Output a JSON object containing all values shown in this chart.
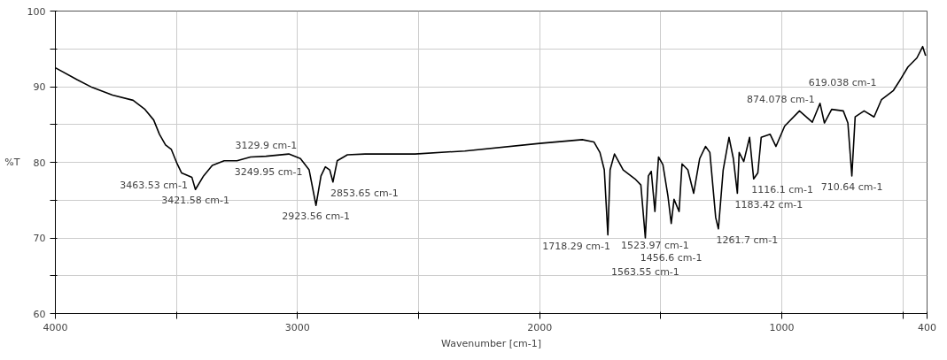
{
  "chart_data": {
    "type": "line",
    "xlabel": "Wavenumber [cm-1]",
    "ylabel": "%T",
    "color": "#000000",
    "grid": true,
    "xlim": [
      4000,
      400
    ],
    "ylim": [
      60,
      100
    ],
    "xticks": [
      4000,
      {
        "value": 3500,
        "label": null
      },
      3000,
      {
        "value": 2500,
        "label": null
      },
      2000,
      {
        "value": 1500,
        "label": null
      },
      1000,
      {
        "value": 500,
        "label": null
      },
      400
    ],
    "yticks": [
      60,
      {
        "value": 65,
        "label": null
      },
      70,
      {
        "value": 75,
        "label": null
      },
      80,
      {
        "value": 85,
        "label": null
      },
      90,
      {
        "value": 95,
        "label": null
      },
      100
    ],
    "x": [
      4000,
      3909,
      3848,
      3764,
      3679,
      3630,
      3594,
      3570,
      3545,
      3521,
      3497,
      3479,
      3463.53,
      3436,
      3421.58,
      3388,
      3352,
      3303,
      3249.95,
      3194,
      3129.9,
      3036,
      2988,
      2952,
      2923.56,
      2903,
      2885,
      2867,
      2853.65,
      2836,
      2794,
      2721,
      2515,
      2309,
      2000,
      1824,
      1776,
      1751,
      1733,
      1718.29,
      1709,
      1691,
      1655,
      1606,
      1582,
      1563.55,
      1551,
      1539,
      1523.97,
      1509,
      1491,
      1470,
      1456.6,
      1445,
      1424,
      1412,
      1388,
      1364,
      1339,
      1315,
      1297,
      1273,
      1261.7,
      1242,
      1218,
      1200,
      1183.42,
      1176,
      1157,
      1133,
      1116.1,
      1099,
      1085,
      1048,
      1024,
      988,
      927,
      874.078,
      842,
      824,
      794,
      746,
      727,
      710.64,
      697,
      660,
      619.038,
      588,
      539,
      515,
      479,
      442,
      418,
      406
    ],
    "values": [
      92.5,
      90.9,
      89.9,
      88.9,
      88.2,
      87.0,
      85.6,
      83.7,
      82.3,
      81.7,
      79.8,
      78.6,
      78.4,
      78.0,
      76.4,
      78.2,
      79.6,
      80.2,
      80.2,
      80.7,
      80.8,
      81.1,
      80.5,
      79.0,
      74.3,
      78.2,
      79.4,
      79.0,
      77.4,
      80.2,
      81.0,
      81.1,
      81.1,
      81.5,
      82.5,
      83.0,
      82.7,
      81.3,
      79.0,
      70.4,
      79.0,
      81.1,
      79.0,
      77.8,
      77.0,
      70.0,
      78.2,
      78.8,
      73.5,
      80.7,
      79.7,
      75.5,
      71.9,
      75.1,
      73.5,
      79.8,
      79.0,
      75.9,
      80.5,
      82.1,
      81.3,
      72.7,
      71.2,
      79.0,
      83.3,
      80.5,
      75.9,
      81.3,
      80.1,
      83.3,
      77.8,
      78.6,
      83.3,
      83.7,
      82.1,
      84.8,
      86.8,
      85.3,
      87.8,
      85.2,
      87.0,
      86.8,
      85.2,
      78.2,
      86.0,
      86.8,
      86.0,
      88.3,
      89.5,
      90.7,
      92.6,
      93.8,
      95.3,
      94.1
    ],
    "annotations": [
      {
        "text": "3129.9 cm-1",
        "x": 3129.9,
        "y": 80.8
      },
      {
        "text": "3249.95 cm-1",
        "x": 3249.95,
        "y": 80.2
      },
      {
        "text": "3463.53 cm-1",
        "x": 3463.53,
        "y": 78.4
      },
      {
        "text": "3421.58 cm-1",
        "x": 3421.58,
        "y": 76.4
      },
      {
        "text": "2853.65 cm-1",
        "x": 2853.65,
        "y": 77.4
      },
      {
        "text": "2923.56 cm-1",
        "x": 2923.56,
        "y": 74.3
      },
      {
        "text": "1523.97 cm-1",
        "x": 1523.97,
        "y": 73.5
      },
      {
        "text": "1456.6 cm-1",
        "x": 1456.6,
        "y": 71.9
      },
      {
        "text": "1718.29 cm-1",
        "x": 1718.29,
        "y": 70.4
      },
      {
        "text": "1563.55 cm-1",
        "x": 1563.55,
        "y": 70.0
      },
      {
        "text": "1261.7 cm-1",
        "x": 1261.7,
        "y": 71.2
      },
      {
        "text": "1183.42 cm-1",
        "x": 1183.42,
        "y": 75.9
      },
      {
        "text": "1116.1 cm-1",
        "x": 1116.1,
        "y": 77.8
      },
      {
        "text": "874.078 cm-1",
        "x": 874.078,
        "y": 85.3
      },
      {
        "text": "710.64 cm-1",
        "x": 710.64,
        "y": 78.2
      },
      {
        "text": "619.038 cm-1",
        "x": 619.038,
        "y": 86.0
      }
    ]
  }
}
